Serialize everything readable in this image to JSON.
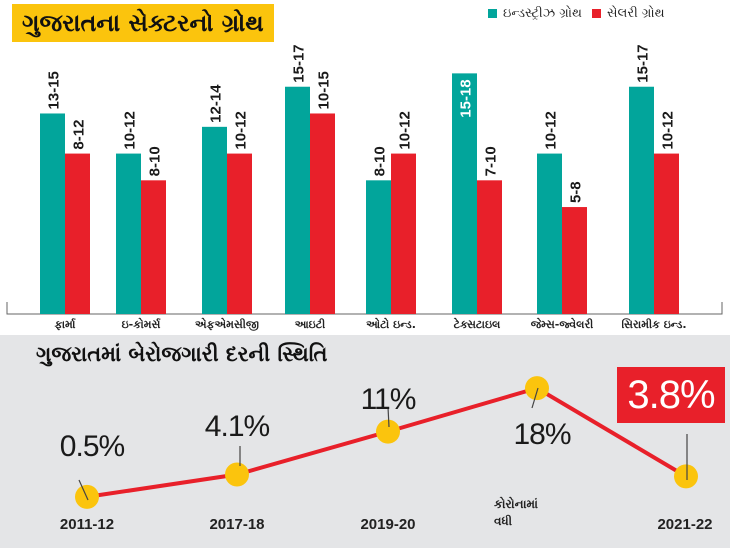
{
  "colors": {
    "industry": "#02a59b",
    "salary": "#e8202a",
    "title_bg": "#fbc40d",
    "dot": "#fbc40d",
    "line": "#e8202a",
    "bottom_bg": "#e4e5e7"
  },
  "chart_data": [
    {
      "type": "bar",
      "title": "ગુજરાતના સેક્ટરનો ગ્રોથ",
      "legend_position": "top-right",
      "categories": [
        "ફાર્મા",
        "ઇ-કોમર્સ",
        "એફએમસીજી",
        "આઇટી",
        "ઓટો ઇન્ડ.",
        "ટેક્સટાઇલ",
        "જેમ્સ-જ્વેલરી",
        "સિરામીક ઇન્ડ."
      ],
      "series": [
        {
          "name": "ઇન્ડસ્ટ્રીઝ ગ્રોથ",
          "labels": [
            "13-15",
            "10-12",
            "12-14",
            "15-17",
            "8-10",
            "15-18",
            "10-12",
            "15-17"
          ],
          "values": [
            15,
            12,
            14,
            17,
            10,
            18,
            12,
            17
          ]
        },
        {
          "name": "સેલરી ગ્રોથ",
          "labels": [
            "8-12",
            "8-10",
            "10-12",
            "10-15",
            "10-12",
            "7-10",
            "5-8",
            "10-12"
          ],
          "values": [
            12,
            10,
            12,
            15,
            12,
            10,
            8,
            12
          ]
        }
      ],
      "ylim": [
        0,
        19
      ]
    },
    {
      "type": "line",
      "title": "ગુજરાતમાં બેરોજગારી દરની સ્થિતિ",
      "x": [
        "2011-12",
        "2017-18",
        "2019-20",
        "કોરોનામાં વધી",
        "2021-22"
      ],
      "labels": [
        "0.5%",
        "4.1%",
        "11%",
        "18%",
        "3.8%"
      ],
      "values": [
        0.5,
        4.1,
        11,
        18,
        3.8
      ],
      "note": "કોરોનામાં\nવધી"
    }
  ],
  "note_lines": [
    "કોરોનામાં",
    "વધી"
  ]
}
